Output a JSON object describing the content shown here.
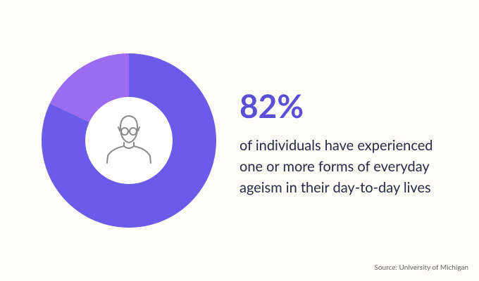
{
  "chart_data": {
    "type": "donut",
    "values": [
      82,
      18
    ],
    "value_labels": [
      "82%",
      null
    ],
    "colors": [
      "#6b5be8",
      "#9b6cf1"
    ],
    "description": [
      "of individuals have experienced",
      "one or more forms of everyday",
      "ageism in their day-to-day lives"
    ],
    "source": "Source: University of Michigan"
  }
}
